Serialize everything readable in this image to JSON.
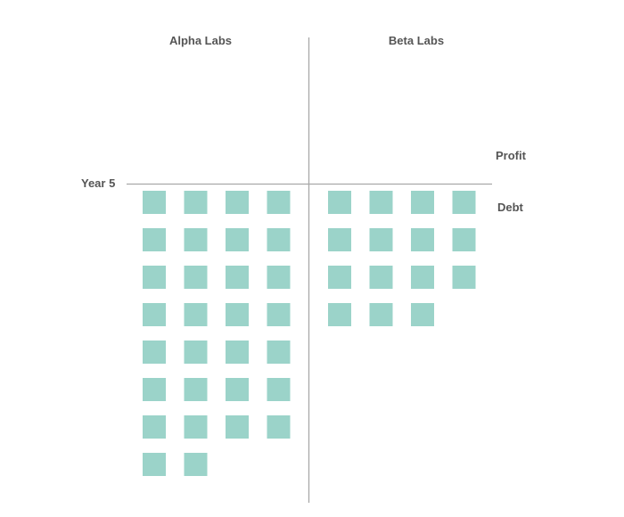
{
  "chart_data": {
    "type": "waffle",
    "row_label": "Year 5",
    "direction_labels": {
      "above": "Profit",
      "below": "Debt"
    },
    "square_color": "#9bd3c9",
    "axis_color": "#a8a8a8",
    "series": [
      {
        "name": "Alpha Labs",
        "direction": "Debt",
        "count": 30,
        "columns": 4
      },
      {
        "name": "Beta Labs",
        "direction": "Debt",
        "count": 15,
        "columns": 4
      }
    ]
  }
}
